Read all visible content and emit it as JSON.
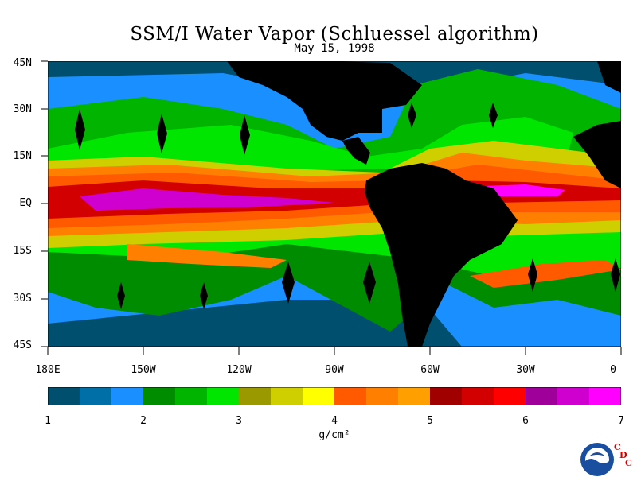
{
  "title": "SSM/I Water Vapor (Schluessel algorithm)",
  "subtitle": "May 15, 1998",
  "lat_labels": [
    "45N",
    "30N",
    "15N",
    "EQ",
    "15S",
    "30S",
    "45S"
  ],
  "lon_labels": [
    "180E",
    "150W",
    "120W",
    "90W",
    "60W",
    "30W",
    "0"
  ],
  "colorbar": {
    "colors": [
      "#004f6e",
      "#006fa8",
      "#1a8fff",
      "#008c00",
      "#00b400",
      "#00e600",
      "#9a9a00",
      "#cfcf00",
      "#ffff00",
      "#ff5a00",
      "#ff7f00",
      "#ffa000",
      "#a00000",
      "#d20000",
      "#ff0000",
      "#a0009a",
      "#cf00cf",
      "#ff00ff"
    ],
    "ticks": [
      "1",
      "2",
      "3",
      "4",
      "5",
      "6",
      "7"
    ],
    "units": "g/cm²"
  },
  "logo": {
    "name": "noaa-logo",
    "text": "NOAA"
  },
  "cdc": {
    "c1": "C",
    "d": "D",
    "c2": "C"
  }
}
